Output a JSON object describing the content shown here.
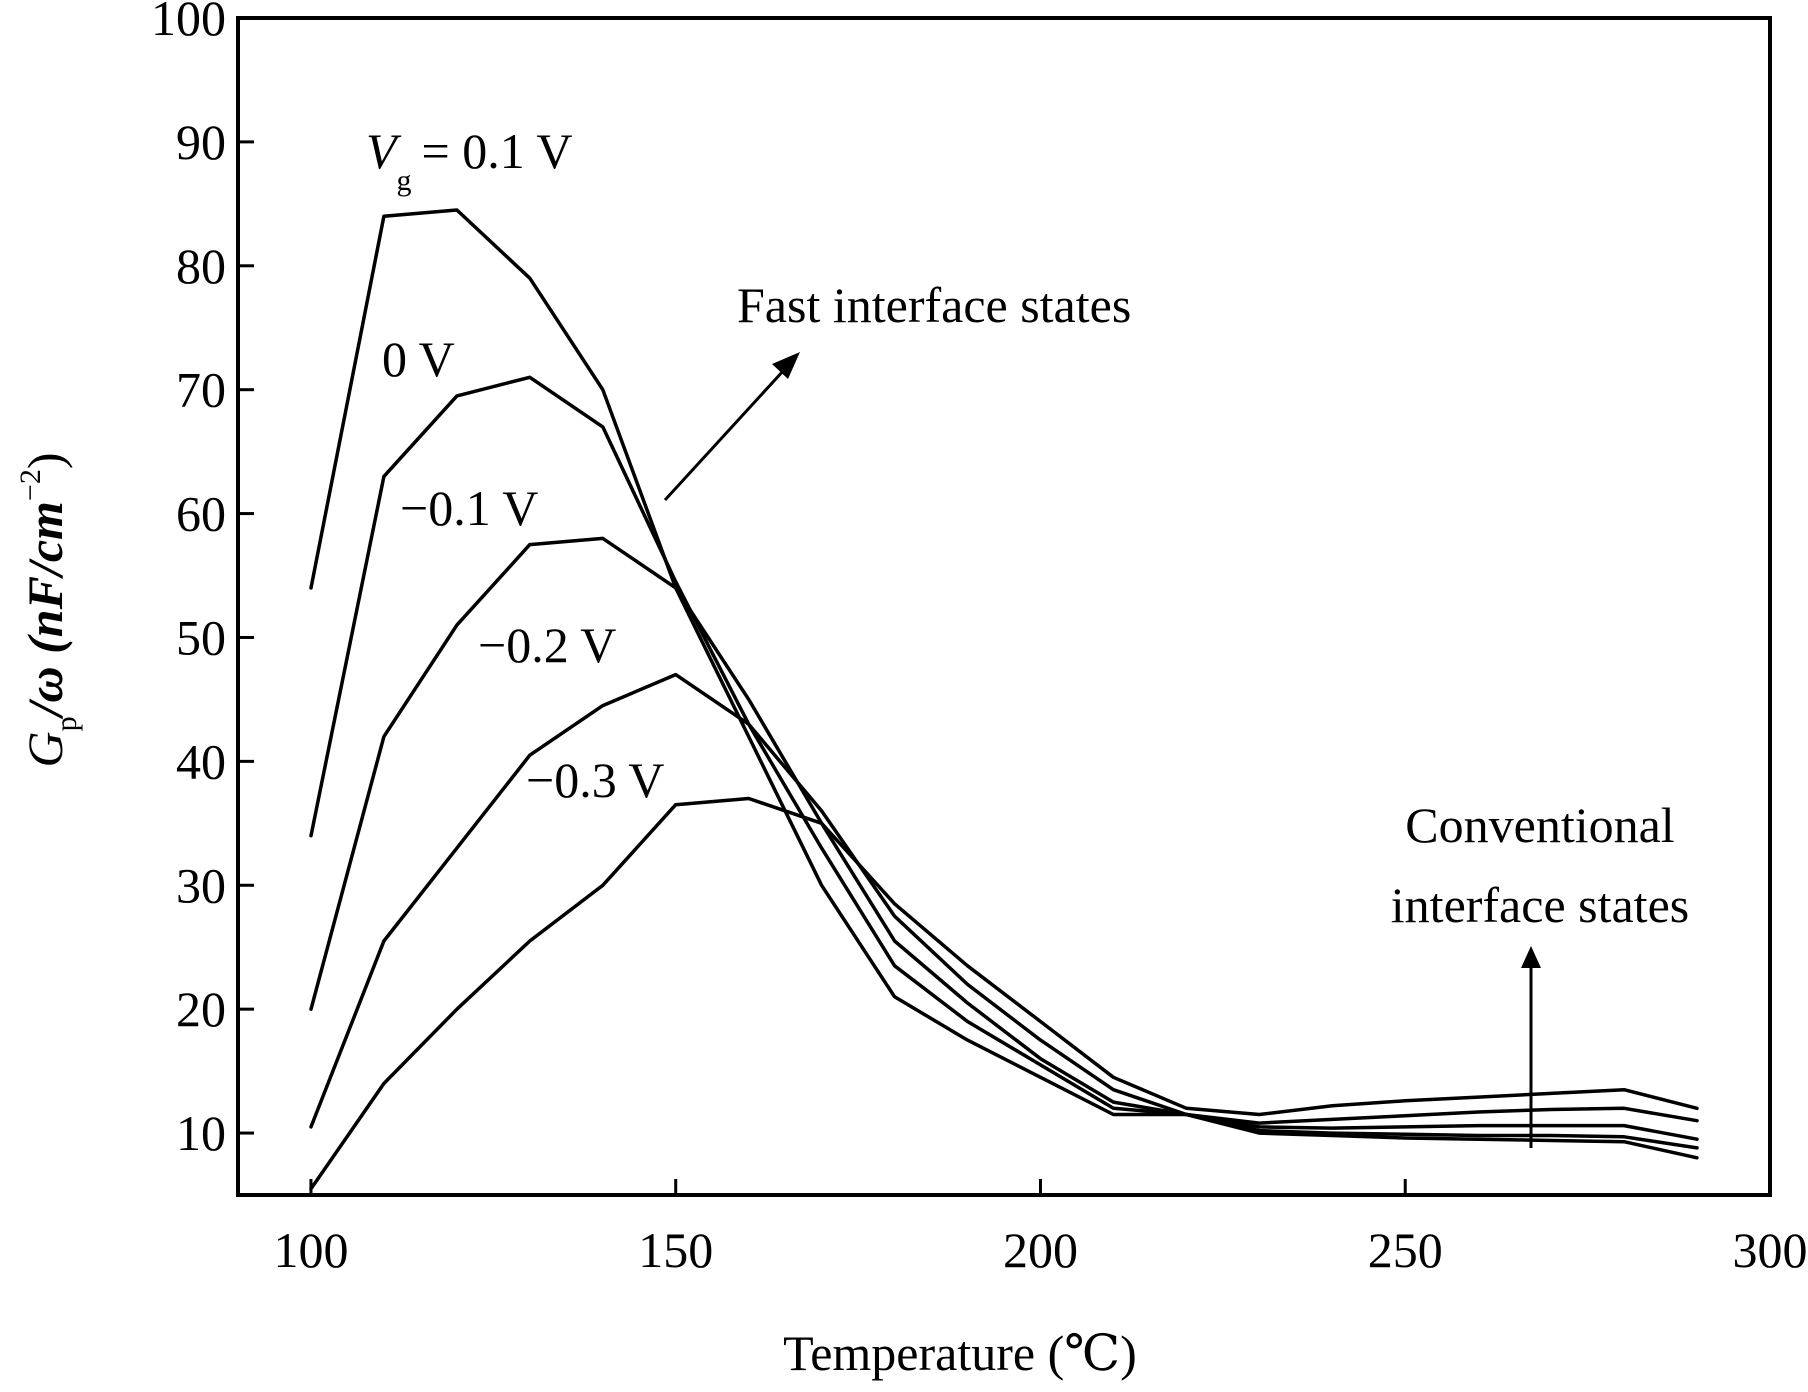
{
  "chart_data": {
    "type": "line",
    "xlabel": "Temperature (℃)",
    "ylabel_parts": {
      "main": "G",
      "sub": "p",
      "rest": "/ω (nF/cm",
      "sup": "−2",
      "close": ")"
    },
    "xlim": [
      90,
      300
    ],
    "ylim": [
      5,
      100
    ],
    "xticks": [
      100,
      150,
      200,
      250,
      300
    ],
    "yticks": [
      10,
      20,
      30,
      40,
      50,
      60,
      70,
      80,
      90,
      100
    ],
    "grid": false,
    "series": [
      {
        "name": "= 0.1 V",
        "name_prefix": "V",
        "name_sub": "g",
        "points": [
          [
            100,
            54
          ],
          [
            110,
            84
          ],
          [
            120,
            84.5
          ],
          [
            130,
            79
          ],
          [
            140,
            70
          ],
          [
            150,
            54
          ],
          [
            160,
            42
          ],
          [
            170,
            30
          ],
          [
            180,
            21
          ],
          [
            190,
            17.5
          ],
          [
            200,
            14.5
          ],
          [
            210,
            11.5
          ],
          [
            220,
            11.5
          ],
          [
            230,
            10
          ],
          [
            240,
            9.8
          ],
          [
            250,
            9.6
          ],
          [
            260,
            9.5
          ],
          [
            270,
            9.4
          ],
          [
            280,
            9.3
          ],
          [
            290,
            8
          ]
        ]
      },
      {
        "name": "0 V",
        "points": [
          [
            100,
            34
          ],
          [
            110,
            63
          ],
          [
            120,
            69.5
          ],
          [
            130,
            71
          ],
          [
            140,
            67
          ],
          [
            150,
            54.5
          ],
          [
            160,
            43
          ],
          [
            170,
            33
          ],
          [
            180,
            23.5
          ],
          [
            190,
            19
          ],
          [
            200,
            15.5
          ],
          [
            210,
            12
          ],
          [
            220,
            11.5
          ],
          [
            230,
            10.2
          ],
          [
            240,
            10
          ],
          [
            250,
            9.9
          ],
          [
            260,
            9.8
          ],
          [
            270,
            9.8
          ],
          [
            280,
            9.7
          ],
          [
            290,
            8.8
          ]
        ]
      },
      {
        "name": "−0.1 V",
        "points": [
          [
            100,
            20
          ],
          [
            110,
            42
          ],
          [
            120,
            51
          ],
          [
            130,
            57.5
          ],
          [
            140,
            58
          ],
          [
            150,
            54
          ],
          [
            160,
            45
          ],
          [
            170,
            35
          ],
          [
            180,
            25.5
          ],
          [
            190,
            20.5
          ],
          [
            200,
            16
          ],
          [
            210,
            12.5
          ],
          [
            220,
            11.5
          ],
          [
            230,
            10.5
          ],
          [
            240,
            10.4
          ],
          [
            250,
            10.5
          ],
          [
            260,
            10.6
          ],
          [
            270,
            10.6
          ],
          [
            280,
            10.6
          ],
          [
            290,
            9.5
          ]
        ]
      },
      {
        "name": "−0.2 V",
        "points": [
          [
            100,
            10.5
          ],
          [
            110,
            25.5
          ],
          [
            120,
            33
          ],
          [
            130,
            40.5
          ],
          [
            140,
            44.5
          ],
          [
            150,
            47
          ],
          [
            160,
            43
          ],
          [
            170,
            36
          ],
          [
            180,
            27.5
          ],
          [
            190,
            22
          ],
          [
            200,
            17.5
          ],
          [
            210,
            13.5
          ],
          [
            220,
            11.5
          ],
          [
            230,
            10.8
          ],
          [
            240,
            11.1
          ],
          [
            250,
            11.4
          ],
          [
            260,
            11.7
          ],
          [
            270,
            11.9
          ],
          [
            280,
            12
          ],
          [
            290,
            11
          ]
        ]
      },
      {
        "name": "−0.3 V",
        "points": [
          [
            100,
            5.5
          ],
          [
            110,
            14
          ],
          [
            120,
            20
          ],
          [
            130,
            25.5
          ],
          [
            140,
            30
          ],
          [
            150,
            36.5
          ],
          [
            160,
            37
          ],
          [
            170,
            35
          ],
          [
            180,
            28.5
          ],
          [
            190,
            23.5
          ],
          [
            200,
            19
          ],
          [
            210,
            14.5
          ],
          [
            220,
            12
          ],
          [
            230,
            11.5
          ],
          [
            240,
            12.2
          ],
          [
            250,
            12.6
          ],
          [
            260,
            12.9
          ],
          [
            270,
            13.2
          ],
          [
            280,
            13.5
          ],
          [
            290,
            12
          ]
        ]
      }
    ],
    "annotations": [
      {
        "id": "fast",
        "text": "Fast interface states"
      },
      {
        "id": "conv1",
        "text": "Conventional"
      },
      {
        "id": "conv2",
        "text": "interface states"
      }
    ]
  }
}
